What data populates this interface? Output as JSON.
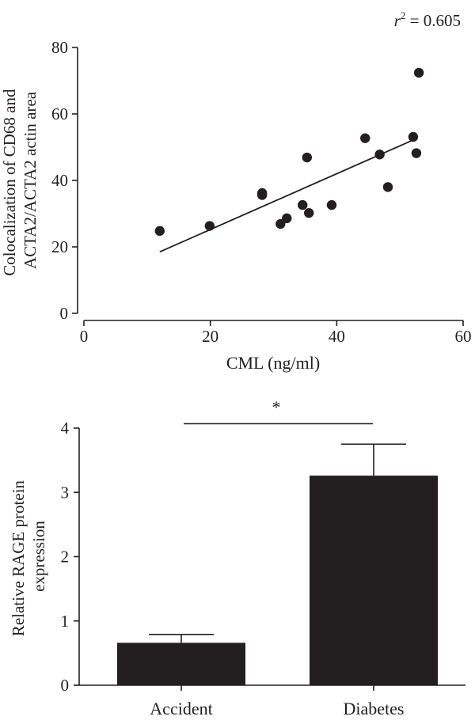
{
  "chart_data": [
    {
      "type": "scatter",
      "title": "",
      "annotation": {
        "r_symbol": "r",
        "r_exponent": "2",
        "text": " = 0.605"
      },
      "xlabel": "CML (ng/ml)",
      "ylabel_lines": [
        "Colocalization of CD68 and",
        "ACTA2/ACTA2 actin area"
      ],
      "xlim": [
        0,
        60
      ],
      "ylim": [
        0,
        80
      ],
      "xticks": [
        0,
        20,
        40,
        60
      ],
      "yticks": [
        0,
        20,
        40,
        60,
        80
      ],
      "grid": false,
      "points": [
        {
          "x": 12,
          "y": 24.8
        },
        {
          "x": 19.9,
          "y": 26.3
        },
        {
          "x": 28.2,
          "y": 35.6
        },
        {
          "x": 28.2,
          "y": 36.2
        },
        {
          "x": 31.1,
          "y": 26.9
        },
        {
          "x": 32.1,
          "y": 28.6
        },
        {
          "x": 34.6,
          "y": 32.6
        },
        {
          "x": 35.3,
          "y": 46.9
        },
        {
          "x": 35.6,
          "y": 30.2
        },
        {
          "x": 39.2,
          "y": 32.6
        },
        {
          "x": 44.5,
          "y": 52.7
        },
        {
          "x": 46.8,
          "y": 47.8
        },
        {
          "x": 48.1,
          "y": 38.0
        },
        {
          "x": 52.1,
          "y": 53.1
        },
        {
          "x": 52.6,
          "y": 48.2
        },
        {
          "x": 53.0,
          "y": 72.4
        }
      ],
      "fit_line": {
        "x": [
          12,
          52.5
        ],
        "y": [
          18.5,
          52.5
        ]
      },
      "colors": {
        "marker": "#231f20",
        "axis": "#231f20"
      }
    },
    {
      "type": "bar",
      "title": "",
      "ylabel_lines": [
        "Relative RAGE protein",
        "expression"
      ],
      "categories": [
        "Accident",
        "Diabetes"
      ],
      "values": [
        0.66,
        3.26
      ],
      "errors": [
        0.13,
        0.49
      ],
      "ylim": [
        0,
        4
      ],
      "yticks": [
        0,
        1,
        2,
        3,
        4
      ],
      "significance": {
        "between": [
          "Accident",
          "Diabetes"
        ],
        "label": "*"
      },
      "grid": false,
      "colors": {
        "bar": "#231f20",
        "axis": "#231f20"
      }
    }
  ]
}
